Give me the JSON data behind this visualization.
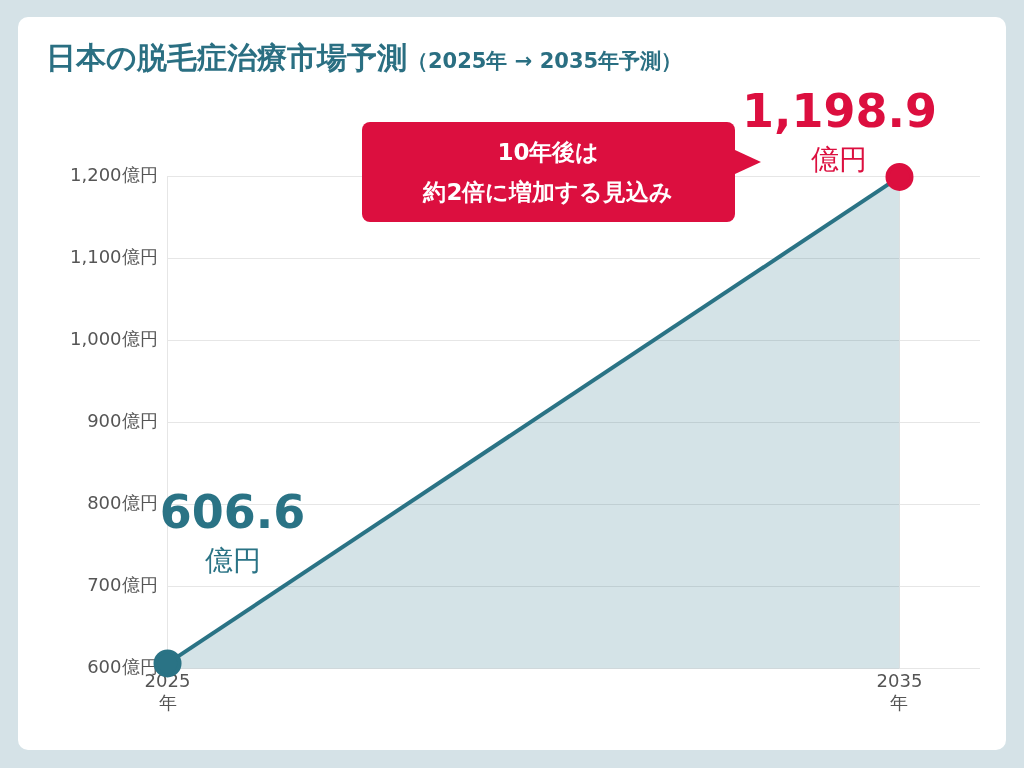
{
  "chart_data": {
    "type": "area",
    "title": "日本の脱毛症治療市場予測",
    "subtitle": "（2025年 → 2035年予測）",
    "x": [
      2025,
      2035
    ],
    "xlim": [
      2025,
      2036.1
    ],
    "xticks": [
      {
        "value": 2025,
        "label": "2025\n年"
      },
      {
        "value": 2035,
        "label": "2035\n年"
      }
    ],
    "ylim": [
      600,
      1200
    ],
    "yticks": [
      {
        "value": 600,
        "label": "600億円"
      },
      {
        "value": 700,
        "label": "700億円"
      },
      {
        "value": 800,
        "label": "800億円"
      },
      {
        "value": 900,
        "label": "900億円"
      },
      {
        "value": 1000,
        "label": "1,000億円"
      },
      {
        "value": 1100,
        "label": "1,100億円"
      },
      {
        "value": 1200,
        "label": "1,200億円"
      }
    ],
    "series": [
      {
        "color": "#2a7385",
        "colors": [
          "#2a7385",
          "#dc0f3f"
        ],
        "values": [
          606.6,
          1198.9
        ],
        "value_labels": [
          "606.6\n億円",
          "1,198.9\n億円"
        ]
      }
    ],
    "annotations": [
      "10年後は",
      "約2倍に増加する見込み"
    ],
    "grid": true,
    "legend": false,
    "marker": "circle",
    "line_style": "solid"
  }
}
